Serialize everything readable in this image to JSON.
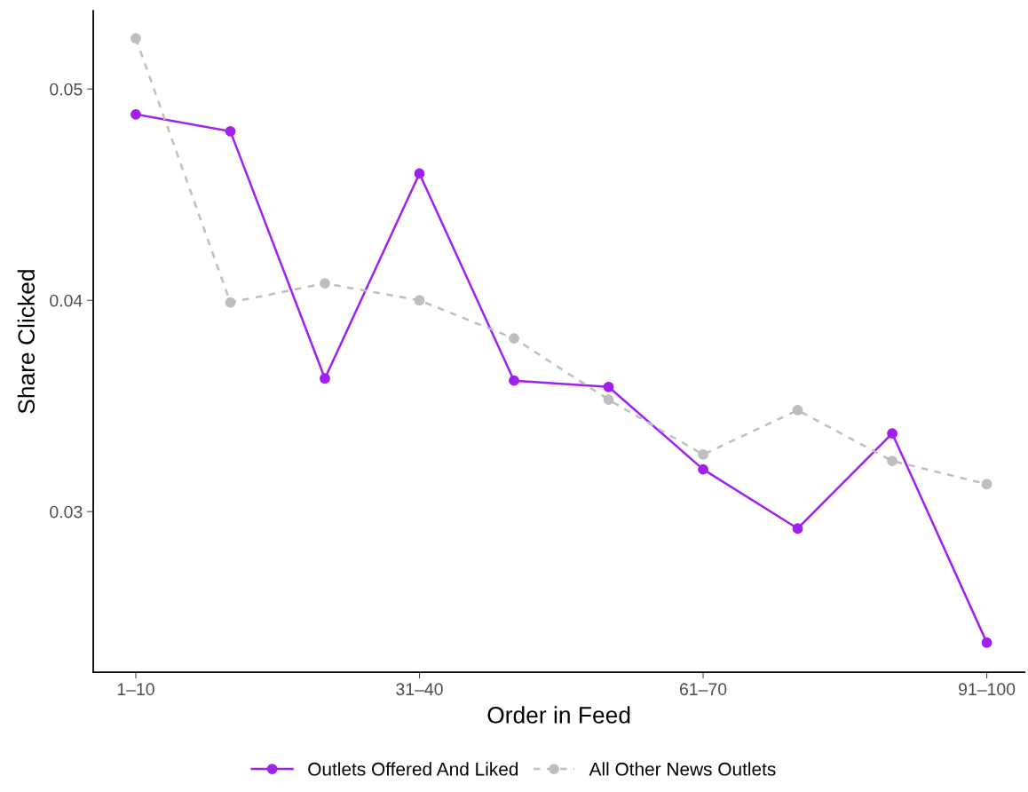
{
  "chart_data": {
    "type": "line",
    "xlabel": "Order in Feed",
    "ylabel": "Share Clicked",
    "categories": [
      "1–10",
      null,
      null,
      "31–40",
      null,
      null,
      "61–70",
      null,
      null,
      "91–100"
    ],
    "series": [
      {
        "name": "Outlets Offered And Liked",
        "color": "#a020f0",
        "line_style": "solid",
        "values": [
          0.0488,
          0.048,
          0.0363,
          0.046,
          0.0362,
          0.0359,
          0.032,
          0.0292,
          0.0337,
          0.0238
        ]
      },
      {
        "name": "All Other News Outlets",
        "color": "#bebebe",
        "line_style": "dashed",
        "values": [
          0.0524,
          0.0399,
          0.0408,
          0.04,
          0.0382,
          0.0353,
          0.0327,
          0.0348,
          0.0324,
          0.0313
        ]
      }
    ],
    "ylim": [
      0.0224,
      0.0537
    ],
    "yticks": [
      0.03,
      0.04,
      0.05
    ],
    "grid": false,
    "legend": "bottom",
    "marker": "circle"
  }
}
